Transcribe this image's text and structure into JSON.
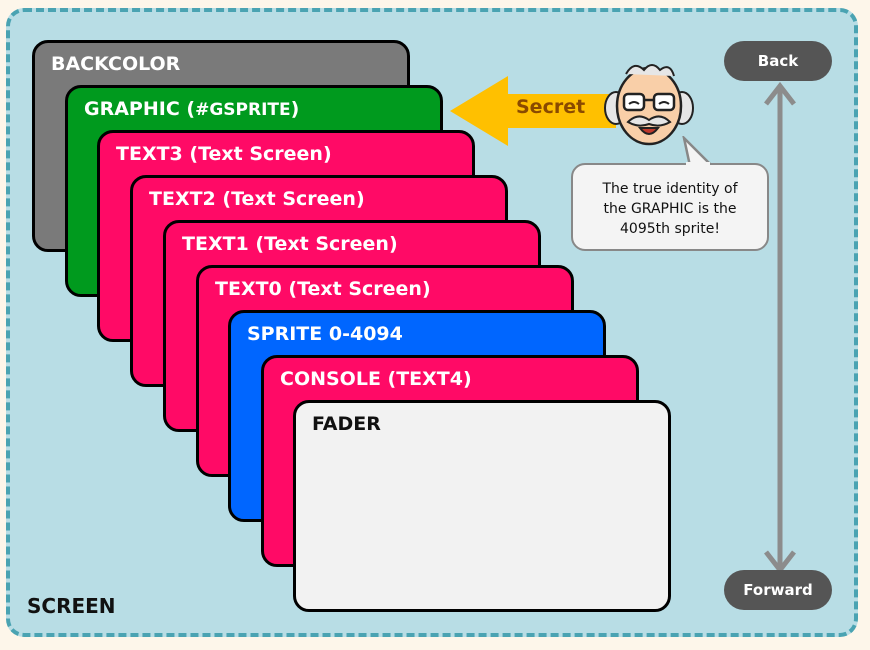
{
  "layers": [
    {
      "name": "BACKCOLOR",
      "sub": "",
      "color": "#7a7a7a",
      "text_color": "#ffffff"
    },
    {
      "name": "GRAPHIC (",
      "sub": "#GSPRITE",
      "after": ")",
      "color": "#009a1e",
      "text_color": "#ffffff"
    },
    {
      "name": "TEXT3 (Text Screen)",
      "sub": "",
      "color": "#ff0a66",
      "text_color": "#ffffff"
    },
    {
      "name": "TEXT2 (Text Screen)",
      "sub": "",
      "color": "#ff0a66",
      "text_color": "#ffffff"
    },
    {
      "name": "TEXT1 (Text Screen)",
      "sub": "",
      "color": "#ff0a66",
      "text_color": "#ffffff"
    },
    {
      "name": "TEXT0 (Text Screen)",
      "sub": "",
      "color": "#ff0a66",
      "text_color": "#ffffff"
    },
    {
      "name": "SPRITE 0-4094",
      "sub": "",
      "color": "#0066ff",
      "text_color": "#ffffff"
    },
    {
      "name": "CONSOLE (TEXT4)",
      "sub": "",
      "color": "#ff0a66",
      "text_color": "#ffffff"
    },
    {
      "name": "FADER",
      "sub": "",
      "color": "#f2f2f2",
      "text_color": "#111111"
    }
  ],
  "screen_label": "SCREEN",
  "nav": {
    "back_label": "Back",
    "forward_label": "Forward"
  },
  "secret": {
    "label": "Secret",
    "arrow_color": "#ffc000"
  },
  "bubble": {
    "lines": [
      "The true identity of",
      "the GRAPHIC is the",
      "4095th sprite!"
    ]
  },
  "colors": {
    "background": "#b8dde5",
    "border": "#4aa3b2",
    "axis": "#8c8c8c"
  }
}
